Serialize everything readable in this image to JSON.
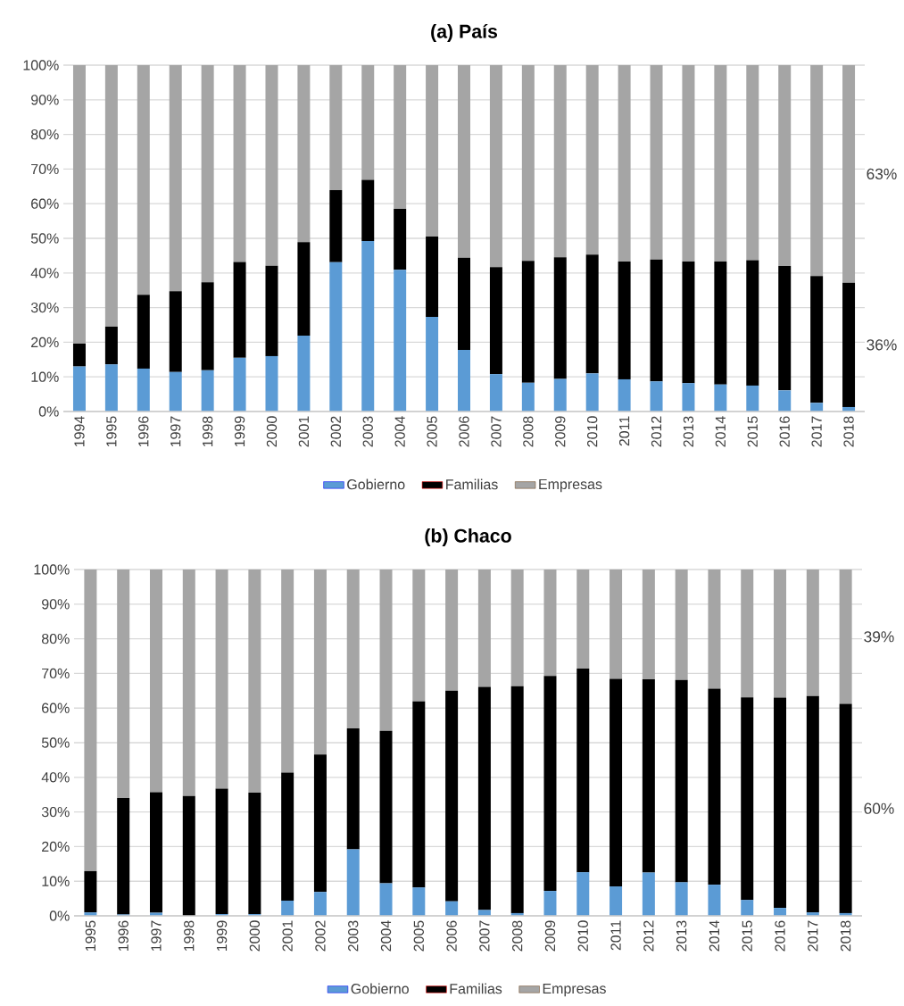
{
  "chart_data": [
    {
      "type": "bar",
      "title": "**(a) País**",
      "stacked": true,
      "grid": "y",
      "legend": "bottom",
      "categories": [
        "1994",
        "1995",
        "1996",
        "1997",
        "1998",
        "1999",
        "2000",
        "2001",
        "2002",
        "2003",
        "2004",
        "2005",
        "2006",
        "2007",
        "2008",
        "2009",
        "2010",
        "2011",
        "2012",
        "2013",
        "2014",
        "2015",
        "2016",
        "2017",
        "2018"
      ],
      "series": [
        {
          "name": "Gobierno",
          "color": "#5b9bd5",
          "values": [
            13.0,
            13.6,
            12.4,
            11.4,
            11.9,
            15.5,
            16.0,
            21.9,
            43.1,
            49.2,
            40.9,
            27.3,
            17.8,
            10.8,
            8.3,
            9.4,
            11.0,
            9.3,
            8.7,
            8.2,
            7.8,
            7.5,
            6.1,
            2.5,
            1.3
          ]
        },
        {
          "name": "Familias",
          "color": "#000000",
          "values": [
            6.6,
            10.9,
            21.3,
            23.3,
            25.4,
            27.7,
            26.1,
            27.0,
            20.8,
            17.7,
            17.6,
            23.2,
            26.6,
            30.9,
            35.2,
            35.1,
            34.3,
            34.0,
            35.2,
            35.1,
            35.5,
            36.2,
            35.9,
            36.6,
            35.9
          ]
        },
        {
          "name": "Empresas",
          "color": "#a5a5a5",
          "values": [
            80.4,
            75.5,
            66.3,
            65.3,
            62.7,
            56.8,
            57.9,
            51.1,
            36.1,
            33.1,
            41.5,
            49.5,
            55.6,
            58.3,
            56.5,
            55.5,
            54.7,
            56.7,
            56.1,
            56.7,
            56.7,
            56.3,
            58.0,
            60.9,
            62.8
          ]
        }
      ],
      "ylim": [
        0,
        100
      ],
      "yticks": [
        {
          "value": 0,
          "label": "0%"
        },
        {
          "value": 10,
          "label": "10%"
        },
        {
          "value": 20,
          "label": "20%"
        },
        {
          "value": 30,
          "label": "30%"
        },
        {
          "value": 40,
          "label": "40%"
        },
        {
          "value": 50,
          "label": "50%"
        },
        {
          "value": 60,
          "label": "60%"
        },
        {
          "value": 70,
          "label": "70%"
        },
        {
          "value": 80,
          "label": "80%"
        },
        {
          "value": 90,
          "label": "90%"
        },
        {
          "value": 100,
          "label": "100%"
        }
      ],
      "annotations": [
        "63%",
        "36%"
      ]
    },
    {
      "type": "bar",
      "title": "**(b) Chaco**",
      "stacked": true,
      "grid": "y",
      "legend": "bottom",
      "categories": [
        "1995",
        "1996",
        "1997",
        "1998",
        "1999",
        "2000",
        "2001",
        "2002",
        "2003",
        "2004",
        "2005",
        "2006",
        "2007",
        "2008",
        "2009",
        "2010",
        "2011",
        "2012",
        "2013",
        "2014",
        "2015",
        "2016",
        "2017",
        "2018"
      ],
      "series": [
        {
          "name": "Gobierno",
          "color": "#5b9bd5",
          "values": [
            1.0,
            0.4,
            0.9,
            0,
            0.5,
            0.5,
            4.4,
            6.9,
            19.2,
            9.4,
            8.2,
            4.2,
            1.7,
            0.8,
            7.2,
            12.6,
            8.5,
            12.5,
            9.7,
            9.0,
            4.6,
            2.3,
            1.0,
            0.8
          ]
        },
        {
          "name": "Familias",
          "color": "#000000",
          "values": [
            11.9,
            33.6,
            34.8,
            34.6,
            36.2,
            35.1,
            37.0,
            39.7,
            34.9,
            44.0,
            53.7,
            60.8,
            64.4,
            65.5,
            62.1,
            58.8,
            59.9,
            55.8,
            58.4,
            56.6,
            58.5,
            60.7,
            62.5,
            60.4
          ]
        },
        {
          "name": "Empresas",
          "color": "#a5a5a5",
          "values": [
            87.1,
            66.0,
            64.3,
            65.4,
            63.3,
            64.4,
            58.6,
            53.4,
            45.9,
            46.6,
            38.1,
            35.0,
            33.9,
            33.7,
            30.7,
            28.6,
            31.6,
            31.7,
            31.9,
            34.4,
            36.9,
            37.0,
            36.5,
            38.8
          ]
        }
      ],
      "ylim": [
        0,
        100
      ],
      "yticks": [
        {
          "value": 0,
          "label": "0%"
        },
        {
          "value": 10,
          "label": "10%"
        },
        {
          "value": 20,
          "label": "20%"
        },
        {
          "value": 30,
          "label": "30%"
        },
        {
          "value": 40,
          "label": "40%"
        },
        {
          "value": 50,
          "label": "50%"
        },
        {
          "value": 60,
          "label": "60%"
        },
        {
          "value": 70,
          "label": "70%"
        },
        {
          "value": 80,
          "label": "80%"
        },
        {
          "value": 90,
          "label": "90%"
        },
        {
          "value": 100,
          "label": "100%"
        }
      ],
      "annotations": [
        "39%",
        "60%"
      ]
    }
  ]
}
